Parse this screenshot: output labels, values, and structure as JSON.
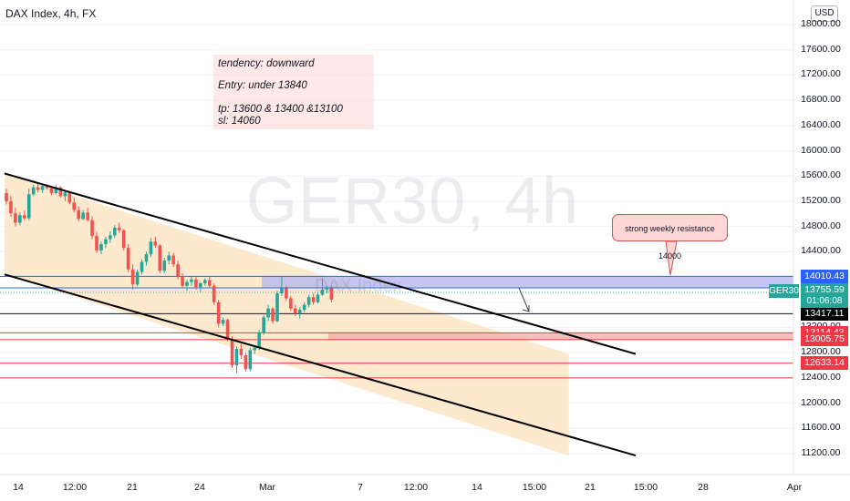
{
  "header": {
    "title": "DAX Index, 4h, FX",
    "currency": "USD"
  },
  "watermark": "GER30, 4h",
  "watermark_small": "DAX Index",
  "annotations": {
    "note_lines": [
      "tendency: downward",
      "Entry: under 13840",
      "tp: 13600 & 13400 &13100",
      "sl: 14060"
    ],
    "callout": "strong weekly resistance 14000"
  },
  "symbol_tag": "GER30",
  "price_tags": {
    "current": "13755.59",
    "countdown": "01:06:08"
  },
  "colors": {
    "up": "#26a69a",
    "down": "#ef5350",
    "channel_fill": "#fde3c2",
    "resistance_zone": "#b3b3f2",
    "support_zone": "#f7a8a8",
    "blue_line": "#2962ff",
    "red_line": "#f23645"
  },
  "chart_data": {
    "type": "candlestick",
    "title": "DAX Index, 4h, FX",
    "y_axis": {
      "range": [
        11050,
        18250
      ],
      "ticks": [
        18000,
        17600,
        17200,
        16800,
        16400,
        16000,
        15600,
        15200,
        14800,
        14400,
        14000,
        13600,
        13200,
        12800,
        12400,
        12000,
        11600,
        11200
      ],
      "tick_labels": [
        "18000.00",
        "17600.00",
        "17200.00",
        "16800.00",
        "16400.00",
        "16000.00",
        "15600.00",
        "15200.00",
        "14800.00",
        "14400.00",
        "14000.00",
        "13600.00",
        "13200.00",
        "12800.00",
        "12400.00",
        "12000.00",
        "11600.00",
        "11200.00"
      ]
    },
    "x_axis": {
      "ticks": [
        "14",
        "12:00",
        "21",
        "24",
        "Mar",
        "7",
        "12:00",
        "14",
        "15:00",
        "21",
        "15:00",
        "28",
        "Apr"
      ]
    },
    "candles": [
      [
        15330,
        15400,
        15150,
        15200
      ],
      [
        15200,
        15280,
        14950,
        15010
      ],
      [
        15010,
        15100,
        14800,
        14860
      ],
      [
        14860,
        15020,
        14820,
        14980
      ],
      [
        14980,
        15050,
        14900,
        14930
      ],
      [
        14930,
        15400,
        14900,
        15310
      ],
      [
        15310,
        15460,
        15280,
        15420
      ],
      [
        15420,
        15480,
        15340,
        15380
      ],
      [
        15380,
        15460,
        15330,
        15440
      ],
      [
        15440,
        15470,
        15380,
        15410
      ],
      [
        15410,
        15440,
        15300,
        15330
      ],
      [
        15330,
        15450,
        15310,
        15420
      ],
      [
        15420,
        15440,
        15260,
        15280
      ],
      [
        15280,
        15360,
        15200,
        15340
      ],
      [
        15340,
        15360,
        15150,
        15180
      ],
      [
        15180,
        15260,
        15020,
        15060
      ],
      [
        15060,
        15120,
        14880,
        14920
      ],
      [
        14920,
        15060,
        14900,
        15020
      ],
      [
        15020,
        15100,
        14880,
        14900
      ],
      [
        14900,
        14960,
        14600,
        14650
      ],
      [
        14650,
        14720,
        14380,
        14420
      ],
      [
        14420,
        14560,
        14360,
        14520
      ],
      [
        14520,
        14640,
        14460,
        14600
      ],
      [
        14600,
        14720,
        14540,
        14660
      ],
      [
        14660,
        14820,
        14620,
        14780
      ],
      [
        14780,
        14860,
        14700,
        14740
      ],
      [
        14740,
        14760,
        14420,
        14460
      ],
      [
        14460,
        14520,
        14080,
        14120
      ],
      [
        14120,
        14200,
        13800,
        13880
      ],
      [
        13880,
        14120,
        13850,
        14080
      ],
      [
        14080,
        14280,
        14040,
        14240
      ],
      [
        14240,
        14400,
        14180,
        14360
      ],
      [
        14360,
        14620,
        14320,
        14560
      ],
      [
        14560,
        14640,
        14460,
        14500
      ],
      [
        14500,
        14520,
        14060,
        14100
      ],
      [
        14100,
        14300,
        14060,
        14260
      ],
      [
        14260,
        14400,
        14200,
        14340
      ],
      [
        14340,
        14380,
        14160,
        14200
      ],
      [
        14200,
        14260,
        13960,
        14000
      ],
      [
        14000,
        14060,
        13820,
        13860
      ],
      [
        13860,
        13960,
        13780,
        13920
      ],
      [
        13920,
        14000,
        13860,
        13960
      ],
      [
        13960,
        14000,
        13800,
        13840
      ],
      [
        13840,
        13920,
        13760,
        13900
      ],
      [
        13900,
        13980,
        13860,
        13950
      ],
      [
        13950,
        14000,
        13820,
        13860
      ],
      [
        13860,
        13900,
        13560,
        13600
      ],
      [
        13600,
        13640,
        13200,
        13260
      ],
      [
        13260,
        13360,
        13220,
        13320
      ],
      [
        13320,
        13340,
        12980,
        13020
      ],
      [
        13020,
        13060,
        12560,
        12600
      ],
      [
        12600,
        12900,
        12480,
        12860
      ],
      [
        12860,
        12940,
        12700,
        12760
      ],
      [
        12760,
        12800,
        12500,
        12540
      ],
      [
        12540,
        12880,
        12500,
        12840
      ],
      [
        12840,
        12920,
        12780,
        12880
      ],
      [
        12880,
        13160,
        12840,
        13120
      ],
      [
        13120,
        13400,
        13080,
        13360
      ],
      [
        13360,
        13560,
        13300,
        13500
      ],
      [
        13500,
        13520,
        13260,
        13300
      ],
      [
        13300,
        13780,
        13280,
        13740
      ],
      [
        13740,
        14000,
        13700,
        13820
      ],
      [
        13820,
        13860,
        13620,
        13660
      ],
      [
        13660,
        13700,
        13460,
        13500
      ],
      [
        13500,
        13560,
        13380,
        13420
      ],
      [
        13420,
        13520,
        13340,
        13480
      ],
      [
        13480,
        13600,
        13440,
        13560
      ],
      [
        13560,
        13720,
        13520,
        13680
      ],
      [
        13680,
        13740,
        13560,
        13600
      ],
      [
        13600,
        13760,
        13580,
        13720
      ],
      [
        13720,
        13980,
        13700,
        13800
      ],
      [
        13800,
        13860,
        13740,
        13820
      ],
      [
        13820,
        13860,
        13600,
        13640
      ]
    ],
    "channel": {
      "upper": [
        [
          0,
          15640
        ],
        [
          125,
          12780
        ]
      ],
      "lower": [
        [
          0,
          14040
        ],
        [
          125,
          11170
        ]
      ]
    },
    "zones": [
      {
        "name": "resistance",
        "from": 13827.64,
        "to": 14010.43
      },
      {
        "name": "support",
        "from": 13005.75,
        "to": 13114.43
      }
    ],
    "levels": [
      {
        "value": 14010.43,
        "label": "14010.43",
        "style": "blue"
      },
      {
        "value": 13827.64,
        "label": "13827.64",
        "style": "blue"
      },
      {
        "value": 13417.11,
        "label": "13417.11",
        "style": "black"
      },
      {
        "value": 13114.43,
        "label": "13114.43",
        "style": "red"
      },
      {
        "value": 13005.75,
        "label": "13005.75",
        "style": "red"
      },
      {
        "value": 12633.14,
        "label": "12633.14",
        "style": "red"
      },
      {
        "value": 12400,
        "label": "",
        "style": "red"
      }
    ],
    "current_price": 13755.59
  }
}
